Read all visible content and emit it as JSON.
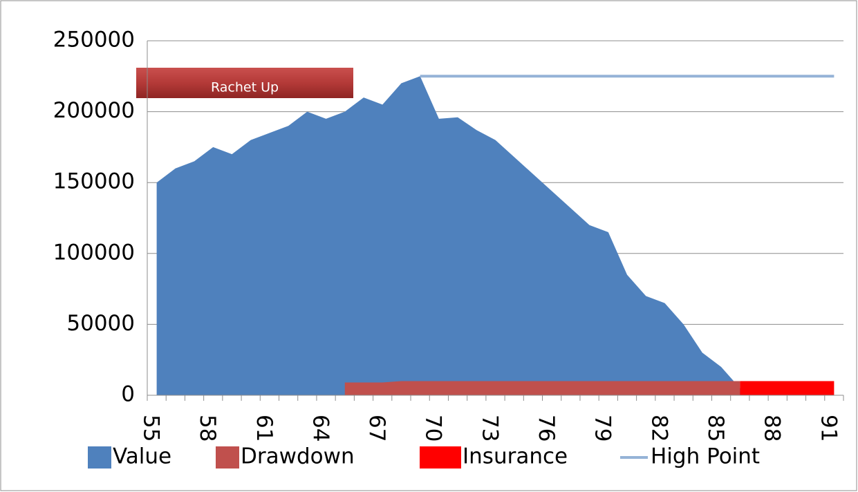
{
  "chart_data": {
    "type": "area",
    "categories": [
      "55",
      null,
      null,
      "58",
      null,
      null,
      "61",
      null,
      null,
      "64",
      null,
      null,
      "67",
      null,
      null,
      "70",
      null,
      null,
      "73",
      null,
      null,
      "76",
      null,
      null,
      "79",
      null,
      null,
      "82",
      null,
      null,
      "85",
      null,
      null,
      "88",
      null,
      null,
      "91"
    ],
    "series": [
      {
        "name": "Value",
        "color": "#4f81bd",
        "kind": "area",
        "values": [
          150000,
          160000,
          165000,
          175000,
          170000,
          180000,
          185000,
          190000,
          200000,
          195000,
          200000,
          210000,
          205000,
          220000,
          225000,
          195000,
          196000,
          187000,
          180000,
          168000,
          156000,
          144000,
          132000,
          120000,
          115000,
          85000,
          70000,
          65000,
          50000,
          30000,
          20000,
          5000,
          0,
          0,
          0,
          0,
          0
        ]
      },
      {
        "name": "Drawdown",
        "color": "#c0504d",
        "kind": "area",
        "values": [
          null,
          null,
          null,
          null,
          null,
          null,
          null,
          null,
          null,
          null,
          9000,
          9000,
          9000,
          10000,
          10000,
          10000,
          10000,
          10000,
          10000,
          10000,
          10000,
          10000,
          10000,
          10000,
          10000,
          10000,
          10000,
          10000,
          10000,
          10000,
          10000,
          10000,
          null,
          null,
          null,
          null,
          null
        ]
      },
      {
        "name": "Insurance",
        "color": "#ff0000",
        "kind": "area",
        "values": [
          null,
          null,
          null,
          null,
          null,
          null,
          null,
          null,
          null,
          null,
          null,
          null,
          null,
          null,
          null,
          null,
          null,
          null,
          null,
          null,
          null,
          null,
          null,
          null,
          null,
          null,
          null,
          null,
          null,
          null,
          null,
          10000,
          10000,
          10000,
          10000,
          10000,
          10000
        ]
      },
      {
        "name": "High Point",
        "color": "#95b3d7",
        "kind": "line",
        "values": [
          null,
          null,
          null,
          null,
          null,
          null,
          null,
          null,
          null,
          null,
          null,
          null,
          null,
          null,
          225000,
          225000,
          225000,
          225000,
          225000,
          225000,
          225000,
          225000,
          225000,
          225000,
          225000,
          225000,
          225000,
          225000,
          225000,
          225000,
          225000,
          225000,
          225000,
          225000,
          225000,
          225000,
          225000
        ]
      }
    ],
    "ylim": [
      0,
      250000
    ],
    "yticks": [
      0,
      50000,
      100000,
      150000,
      200000,
      250000
    ],
    "grid": true,
    "annotation": "Rachet Up",
    "legend": "bottom"
  }
}
